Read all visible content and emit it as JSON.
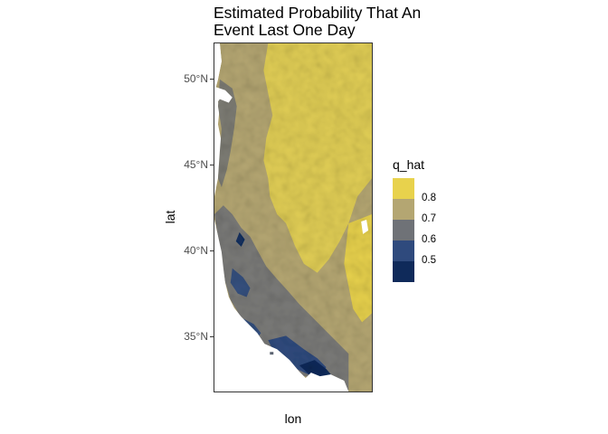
{
  "chart_data": {
    "type": "heatmap",
    "title": "Estimated Probability That An\nEvent Last One Day",
    "title_lines": [
      "Estimated Probability That An",
      "Event Last One Day"
    ],
    "xlabel": "lon",
    "ylabel": "lat",
    "y_ticks": [
      "50°N",
      "45°N",
      "40°N",
      "35°N"
    ],
    "y_tick_values": [
      50,
      45,
      40,
      35
    ],
    "ylim": [
      31.8,
      52.2
    ],
    "grid": false,
    "legend": {
      "title": "q_hat",
      "placement": "right",
      "labels": [
        "0.8",
        "0.7",
        "0.6",
        "0.5"
      ],
      "colors": [
        "#e8d24c",
        "#b4a672",
        "#6f7277",
        "#2f4a7d",
        "#0f2a5a"
      ]
    },
    "colors": {
      "very_high": "#e8d24c",
      "high": "#b4a672",
      "mid": "#6f7277",
      "low": "#2f4a7d",
      "very_low": "#0f2a5a"
    }
  }
}
